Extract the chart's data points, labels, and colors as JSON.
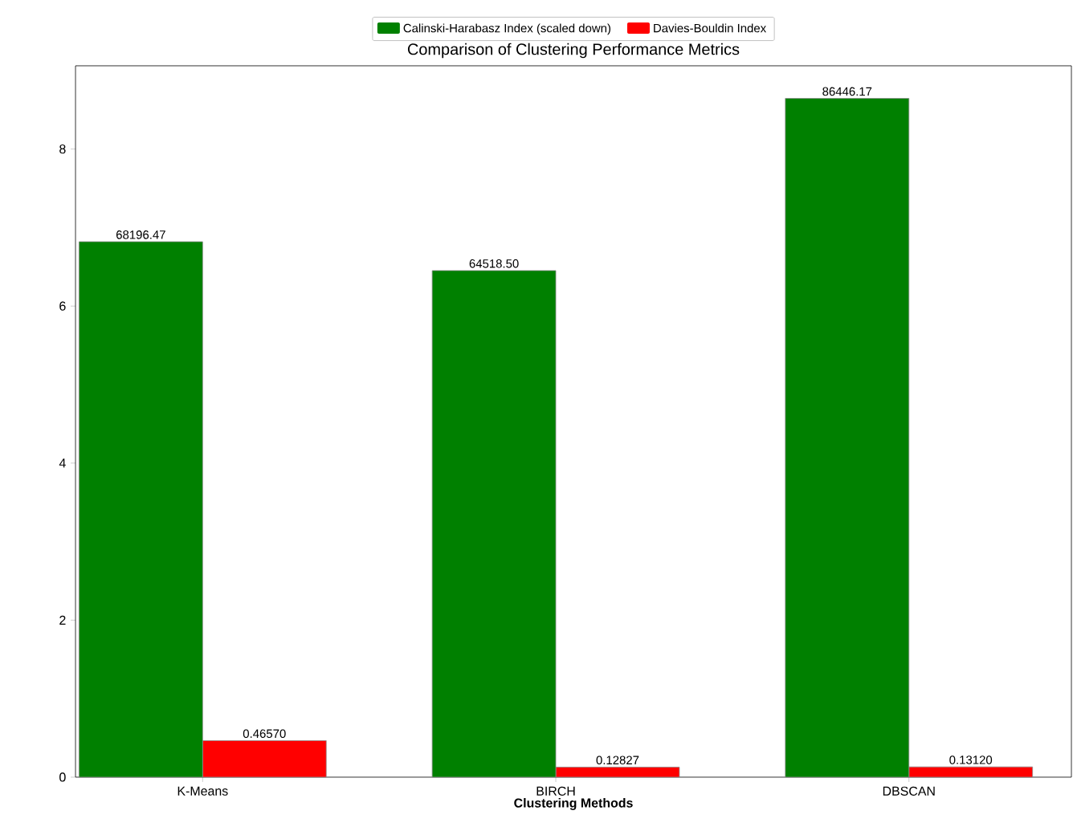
{
  "chart_data": {
    "type": "bar",
    "title": "Comparison of Clustering Performance Metrics",
    "xlabel": "Clustering Methods",
    "categories": [
      "K-Means",
      "BIRCH",
      "DBSCAN"
    ],
    "series": [
      {
        "name": "Calinski-Harabasz Index (scaled down)",
        "color": "#008000",
        "axis": "y2",
        "values": [
          68196.47,
          64518.5,
          86446.17
        ],
        "value_labels": [
          "68196.47",
          "64518.50",
          "86446.17"
        ]
      },
      {
        "name": "Davies-Bouldin Index",
        "color": "#ff0000",
        "values": [
          0.4657,
          0.12827,
          0.1312
        ],
        "value_labels": [
          "0.46570",
          "0.12827",
          "0.13120"
        ]
      }
    ],
    "ylim": [
      0,
      9.06
    ],
    "yticks": [
      0,
      2,
      4,
      6,
      8
    ],
    "y2lim": [
      0,
      90600
    ],
    "tick_labels": "xy",
    "legend": "top"
  }
}
